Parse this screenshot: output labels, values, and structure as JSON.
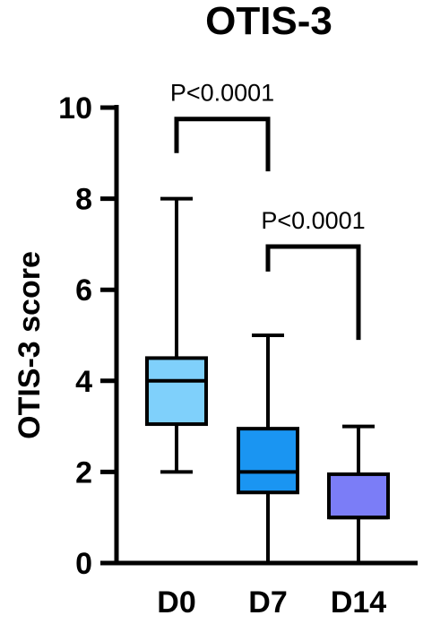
{
  "chart_data": {
    "type": "box",
    "title": "OTIS-3",
    "ylabel": "OTIS-3 score",
    "xlabel": "",
    "ylim": [
      0,
      10
    ],
    "yticks": [
      0,
      2,
      4,
      6,
      8,
      10
    ],
    "categories": [
      "D0",
      "D7",
      "D14"
    ],
    "boxes": [
      {
        "category": "D0",
        "min": 2,
        "q1": 3.05,
        "median": 4.0,
        "q3": 4.5,
        "max": 8,
        "color": "#7fd0fb"
      },
      {
        "category": "D7",
        "min": 0,
        "q1": 1.55,
        "median": 2.0,
        "q3": 2.95,
        "max": 5,
        "color": "#1a95f2"
      },
      {
        "category": "D14",
        "min": 0,
        "q1": 1.0,
        "median": 1.0,
        "q3": 1.95,
        "max": 3,
        "color": "#7b7df7"
      }
    ],
    "comparisons": [
      {
        "from": "D0",
        "to": "D7",
        "label": "P<0.0001",
        "y": 9.75,
        "left_drop": 9.0,
        "right_drop": 8.6
      },
      {
        "from": "D7",
        "to": "D14",
        "label": "P<0.0001",
        "y": 6.95,
        "left_drop": 6.4,
        "right_drop": 4.9
      }
    ]
  }
}
